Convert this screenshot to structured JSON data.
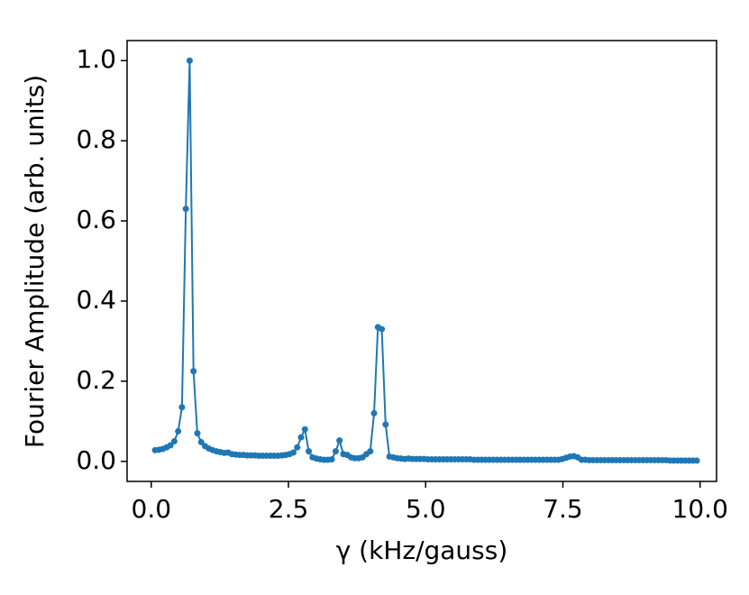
{
  "chart_data": {
    "type": "line",
    "xlabel": "γ (kHz/gauss)",
    "ylabel": "Fourier Amplitude (arb. units)",
    "xlim": [
      -0.44,
      10.3
    ],
    "ylim": [
      -0.05,
      1.05
    ],
    "xticks": [
      {
        "value": 0,
        "label": "0.0"
      },
      2.5,
      {
        "value": 5,
        "label": "5.0"
      },
      7.5,
      {
        "value": 10,
        "label": "10.0"
      }
    ],
    "yticks": [
      {
        "value": 0,
        "label": "0.0"
      },
      0.2,
      0.4,
      0.6,
      0.8,
      {
        "value": 1,
        "label": "1.0"
      }
    ],
    "grid": false,
    "x": [
      0.07,
      0.14,
      0.21,
      0.28,
      0.35,
      0.42,
      0.49,
      0.56,
      0.63,
      0.7,
      0.77,
      0.84,
      0.91,
      0.98,
      1.05,
      1.12,
      1.19,
      1.26,
      1.33,
      1.4,
      1.47,
      1.54,
      1.61,
      1.68,
      1.75,
      1.82,
      1.89,
      1.96,
      2.03,
      2.1,
      2.17,
      2.24,
      2.31,
      2.38,
      2.45,
      2.52,
      2.59,
      2.66,
      2.73,
      2.8,
      2.87,
      2.94,
      3.01,
      3.08,
      3.15,
      3.22,
      3.29,
      3.36,
      3.43,
      3.5,
      3.57,
      3.64,
      3.71,
      3.78,
      3.85,
      3.92,
      3.99,
      4.06,
      4.13,
      4.2,
      4.27,
      4.34,
      4.41,
      4.48,
      4.55,
      4.62,
      4.69,
      4.76,
      4.83,
      4.9,
      4.97,
      5.04,
      5.11,
      5.18,
      5.25,
      5.32,
      5.39,
      5.46,
      5.53,
      5.6,
      5.67,
      5.74,
      5.81,
      5.88,
      5.95,
      6.02,
      6.09,
      6.16,
      6.23,
      6.3,
      6.37,
      6.44,
      6.51,
      6.58,
      6.65,
      6.72,
      6.79,
      6.86,
      6.93,
      7.0,
      7.07,
      7.14,
      7.21,
      7.28,
      7.35,
      7.42,
      7.49,
      7.56,
      7.63,
      7.7,
      7.77,
      7.84,
      7.91,
      7.98,
      8.05,
      8.12,
      8.19,
      8.26,
      8.33,
      8.4,
      8.47,
      8.54,
      8.61,
      8.68,
      8.75,
      8.82,
      8.89,
      8.96,
      9.03,
      9.1,
      9.17,
      9.24,
      9.31,
      9.38,
      9.45,
      9.52,
      9.59,
      9.66,
      9.73,
      9.8,
      9.87,
      9.94
    ],
    "series": [
      {
        "color": "#1f77b4",
        "values": [
          0.028,
          0.029,
          0.031,
          0.035,
          0.04,
          0.05,
          0.075,
          0.135,
          0.63,
          1.0,
          0.225,
          0.07,
          0.048,
          0.038,
          0.032,
          0.028,
          0.025,
          0.023,
          0.021,
          0.022,
          0.018,
          0.017,
          0.016,
          0.016,
          0.015,
          0.015,
          0.015,
          0.014,
          0.014,
          0.014,
          0.014,
          0.014,
          0.014,
          0.015,
          0.016,
          0.018,
          0.022,
          0.035,
          0.06,
          0.08,
          0.025,
          0.01,
          0.007,
          0.005,
          0.004,
          0.004,
          0.005,
          0.025,
          0.052,
          0.018,
          0.016,
          0.01,
          0.008,
          0.008,
          0.01,
          0.018,
          0.025,
          0.12,
          0.335,
          0.33,
          0.092,
          0.012,
          0.01,
          0.008,
          0.007,
          0.006,
          0.007,
          0.006,
          0.006,
          0.006,
          0.006,
          0.005,
          0.005,
          0.005,
          0.005,
          0.005,
          0.005,
          0.005,
          0.005,
          0.005,
          0.005,
          0.005,
          0.005,
          0.004,
          0.004,
          0.004,
          0.004,
          0.004,
          0.004,
          0.004,
          0.004,
          0.004,
          0.004,
          0.004,
          0.004,
          0.004,
          0.004,
          0.004,
          0.004,
          0.004,
          0.004,
          0.004,
          0.004,
          0.004,
          0.004,
          0.004,
          0.006,
          0.009,
          0.012,
          0.013,
          0.01,
          0.004,
          0.004,
          0.003,
          0.003,
          0.003,
          0.003,
          0.003,
          0.003,
          0.003,
          0.003,
          0.003,
          0.003,
          0.003,
          0.003,
          0.003,
          0.003,
          0.003,
          0.003,
          0.003,
          0.003,
          0.003,
          0.003,
          0.003,
          0.002,
          0.002,
          0.002,
          0.002,
          0.002,
          0.002,
          0.002,
          0.002
        ]
      }
    ]
  }
}
